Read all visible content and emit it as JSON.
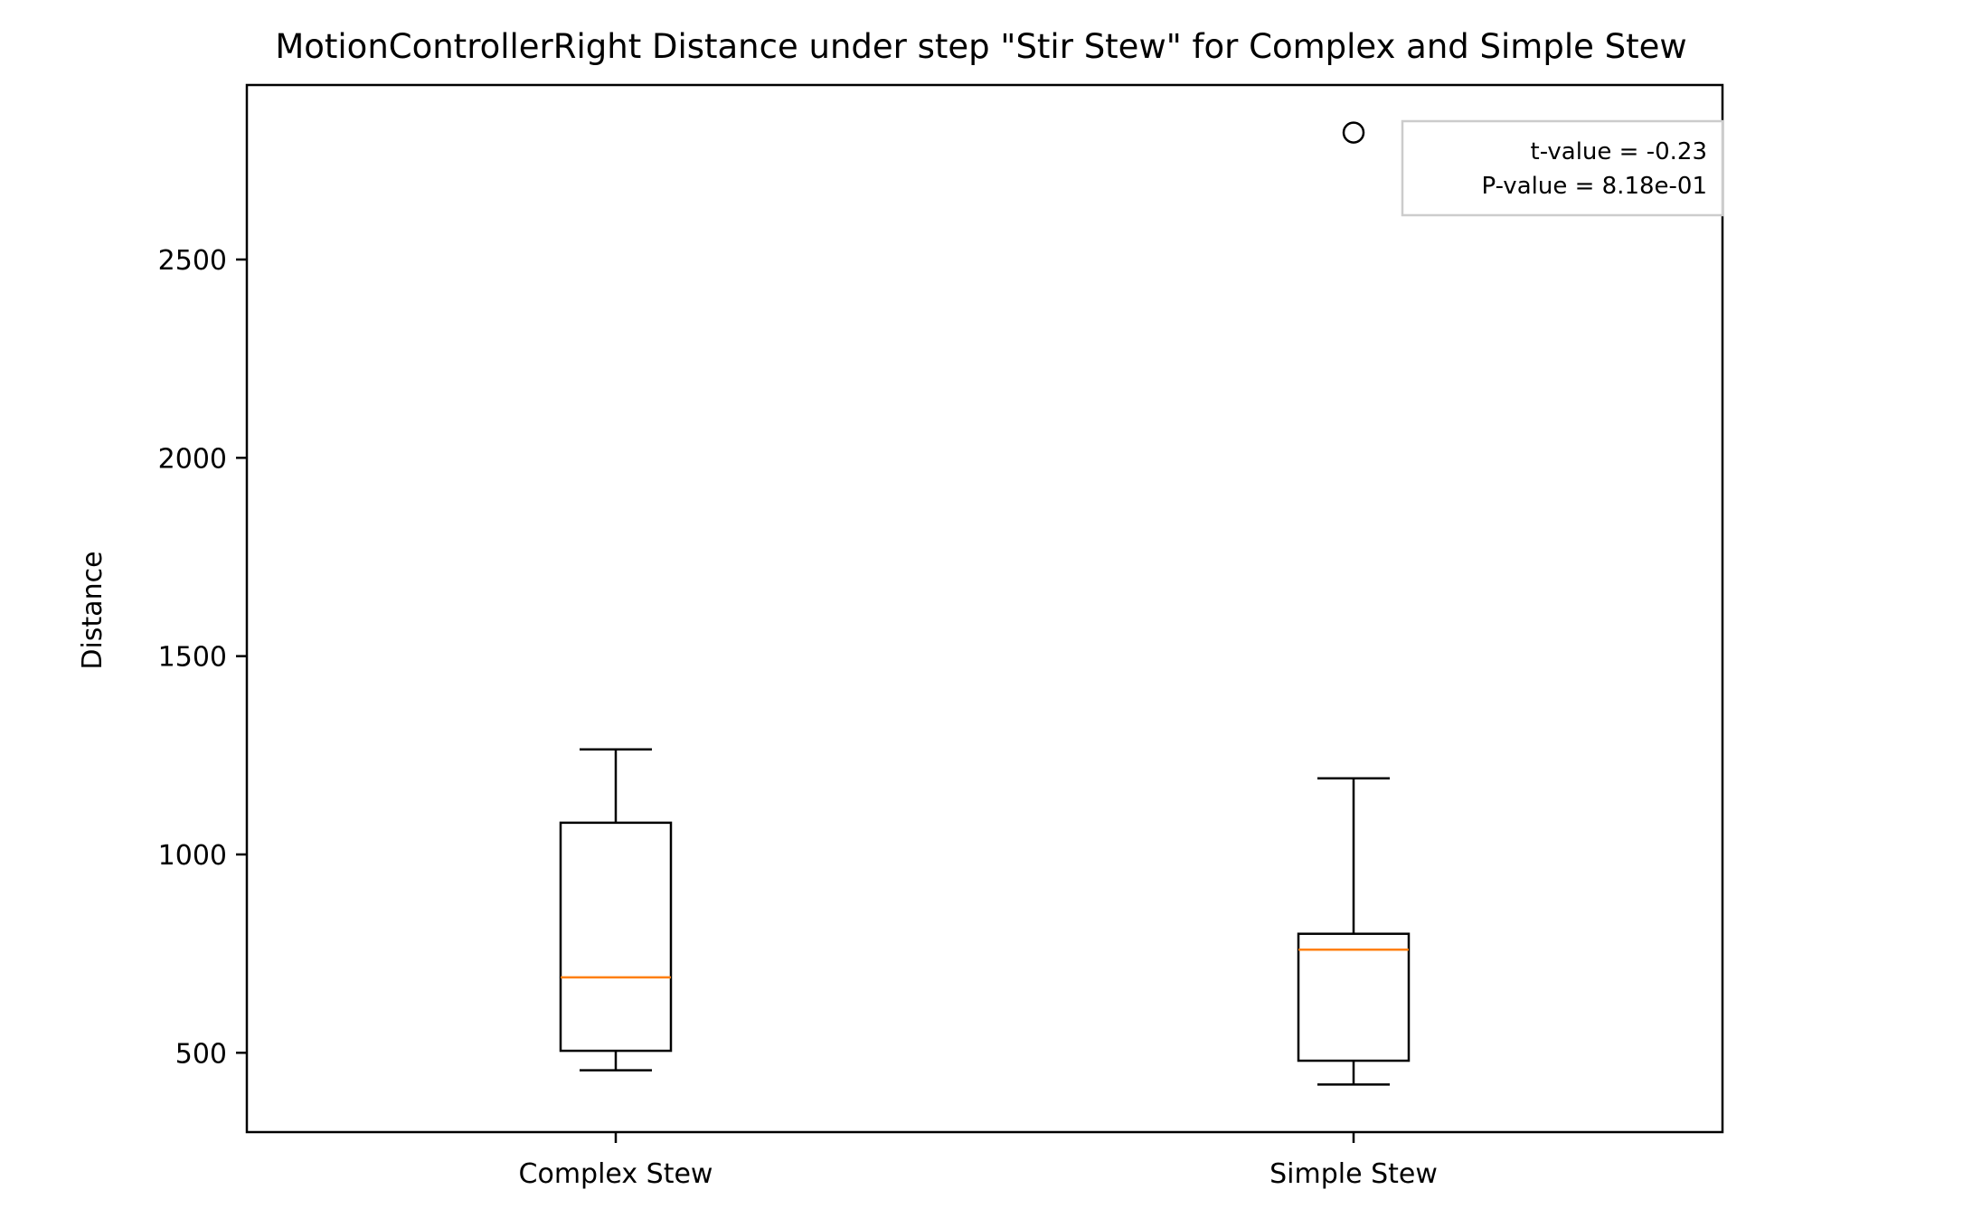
{
  "chart_data": {
    "type": "box",
    "title": "MotionControllerRight Distance under step \"Stir Stew\" for Complex and Simple Stew",
    "xlabel": "",
    "ylabel": "Distance",
    "ylim": [
      300,
      2940
    ],
    "yticks": [
      500,
      1000,
      1500,
      2000,
      2500
    ],
    "categories": [
      "Complex Stew",
      "Simple Stew"
    ],
    "boxes": [
      {
        "name": "Complex Stew",
        "whisker_low": 456,
        "q1": 505,
        "median": 690,
        "q3": 1080,
        "whisker_high": 1265,
        "outliers": []
      },
      {
        "name": "Simple Stew",
        "whisker_low": 420,
        "q1": 480,
        "median": 760,
        "q3": 800,
        "whisker_high": 1192,
        "outliers": [
          2820
        ]
      }
    ],
    "annotation": {
      "lines": [
        "t-value = -0.23",
        "P-value = 8.18e-01"
      ],
      "placement": "top-right"
    },
    "colors": {
      "box": "#000000",
      "median": "#ff7f0e",
      "annotation_border": "#cccccc"
    },
    "grid": false
  }
}
